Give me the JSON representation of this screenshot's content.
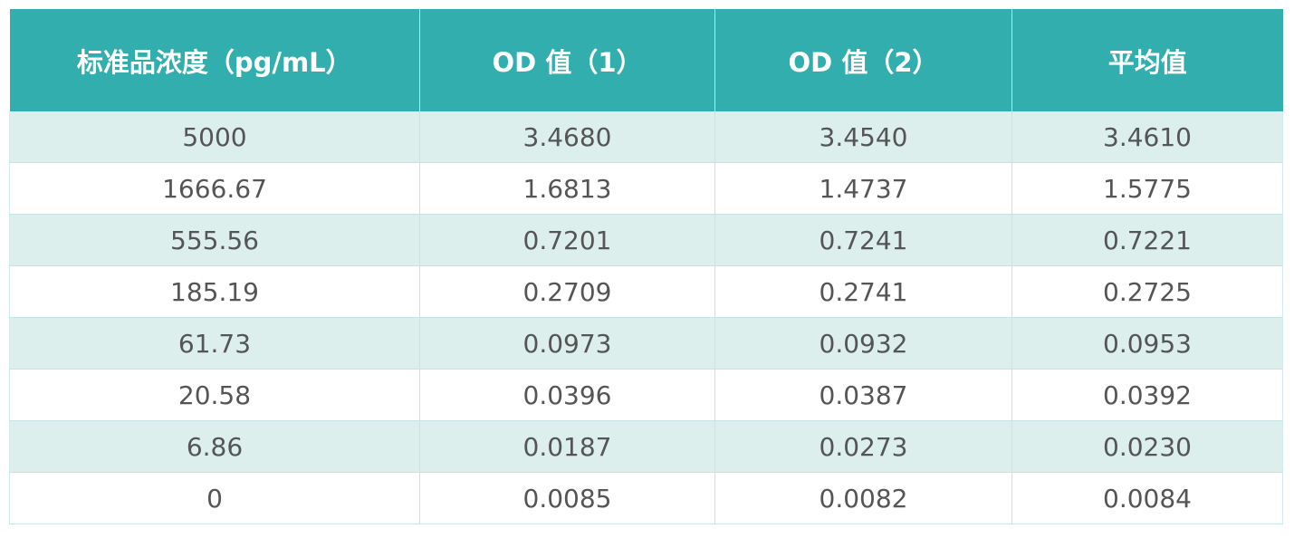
{
  "table": {
    "headers": [
      "标准品浓度（pg/mL）",
      "OD 值（1）",
      "OD 值（2）",
      "平均值"
    ],
    "rows": [
      [
        "5000",
        "3.4680",
        "3.4540",
        "3.4610"
      ],
      [
        "1666.67",
        "1.6813",
        "1.4737",
        "1.5775"
      ],
      [
        "555.56",
        "0.7201",
        "0.7241",
        "0.7221"
      ],
      [
        "185.19",
        "0.2709",
        "0.2741",
        "0.2725"
      ],
      [
        "61.73",
        "0.0973",
        "0.0932",
        "0.0953"
      ],
      [
        "20.58",
        "0.0396",
        "0.0387",
        "0.0392"
      ],
      [
        "6.86",
        "0.0187",
        "0.0273",
        "0.0230"
      ],
      [
        "0",
        "0.0085",
        "0.0082",
        "0.0084"
      ]
    ]
  },
  "colors": {
    "header_bg": "#32aeae",
    "header_text": "#ffffff",
    "row_alt_bg": "#dcefed",
    "cell_text": "#555555"
  }
}
